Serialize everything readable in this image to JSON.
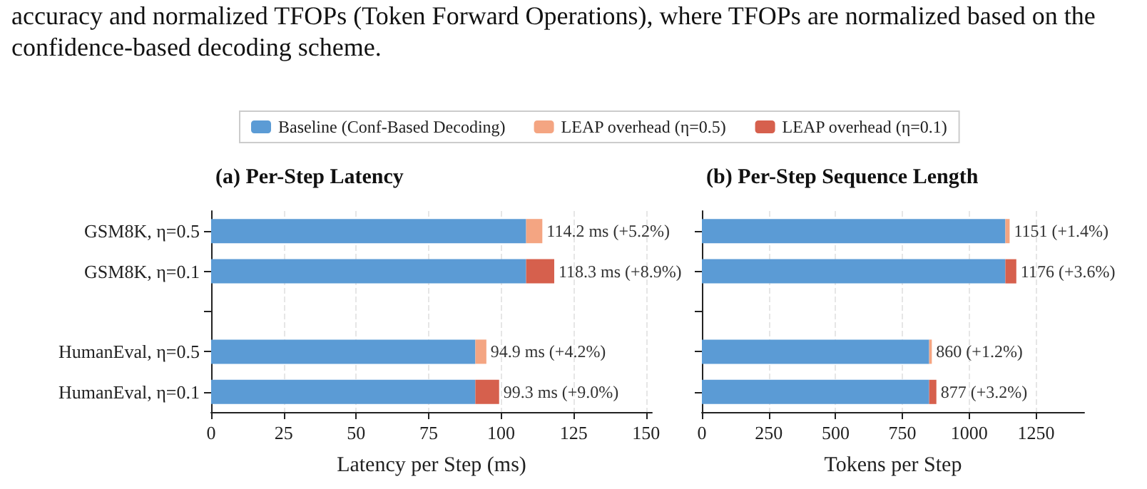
{
  "chart_data": [
    {
      "type": "bar",
      "orientation": "horizontal",
      "stacked": true,
      "title": "(a) Per-Step Latency",
      "xlabel": "Latency per Step (ms)",
      "annotations": [
        "accuracy and normalized TFOPs (Token Forward Operations), where TFOPs are normalized based on the confidence-based decoding scheme."
      ],
      "categories": [
        "GSM8K, η=0.5",
        "GSM8K, η=0.1",
        null,
        "HumanEval, η=0.5",
        "HumanEval, η=0.1"
      ],
      "series": [
        {
          "name": "Baseline (Conf-Based Decoding)",
          "color": "#5b9bd5",
          "values": [
            108.6,
            108.6,
            null,
            91.1,
            91.1
          ]
        },
        {
          "name": "LEAP overhead (η=0.5)",
          "color": "#f4a582",
          "values": [
            5.6,
            null,
            null,
            3.8,
            null
          ]
        },
        {
          "name": "LEAP overhead (η=0.1)",
          "color": "#d6604d",
          "values": [
            null,
            9.7,
            null,
            null,
            8.2
          ]
        }
      ],
      "totals": [
        "114.2 ms (+5.2%)",
        "118.3 ms (+8.9%)",
        null,
        "94.9 ms (+4.2%)",
        "99.3 ms (+9.0%)"
      ],
      "xlim": [
        0,
        152
      ],
      "xticks": [
        0,
        25,
        50,
        75,
        100,
        125,
        150
      ],
      "grid": "x",
      "legend": "top"
    },
    {
      "type": "bar",
      "orientation": "horizontal",
      "stacked": true,
      "title": "(b) Per-Step Sequence Length",
      "xlabel": "Tokens per Step",
      "categories": [
        null,
        null,
        null,
        null,
        null
      ],
      "series": [
        {
          "color": "#5b9bd5",
          "values": [
            1135,
            1135,
            null,
            850,
            850
          ]
        },
        {
          "color": "#f4a582",
          "values": [
            16,
            null,
            null,
            10,
            null
          ]
        },
        {
          "color": "#d6604d",
          "values": [
            null,
            41,
            null,
            null,
            27
          ]
        }
      ],
      "totals": [
        "1151 (+1.4%)",
        "1176 (+3.6%)",
        null,
        "860 (+1.2%)",
        "877 (+3.2%)"
      ],
      "xlim": [
        0,
        1430
      ],
      "xticks": [
        0,
        250,
        500,
        750,
        1000,
        1250
      ],
      "grid": "x",
      "tick_labels": "x"
    }
  ]
}
